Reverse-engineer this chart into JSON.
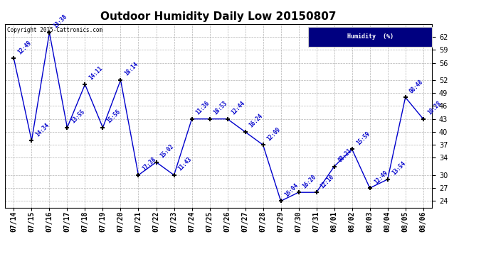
{
  "title": "Outdoor Humidity Daily Low 20150807",
  "background_color": "#ffffff",
  "plot_bg_color": "#ffffff",
  "line_color": "#0000cc",
  "label_color": "#0000cc",
  "grid_color": "#aaaaaa",
  "copyright_text": "Copyright 2015-Cattronics.com",
  "dates": [
    "07/14",
    "07/15",
    "07/16",
    "07/17",
    "07/18",
    "07/19",
    "07/20",
    "07/21",
    "07/22",
    "07/23",
    "07/24",
    "07/25",
    "07/26",
    "07/27",
    "07/28",
    "07/29",
    "07/30",
    "07/31",
    "08/01",
    "08/02",
    "08/03",
    "08/04",
    "08/05",
    "08/06"
  ],
  "values": [
    57,
    38,
    63,
    41,
    51,
    41,
    52,
    30,
    33,
    30,
    43,
    43,
    43,
    40,
    37,
    24,
    26,
    26,
    32,
    36,
    27,
    29,
    48,
    43
  ],
  "time_labels": [
    "12:49",
    "14:34",
    "13:38",
    "13:55",
    "14:11",
    "15:56",
    "18:14",
    "17:38",
    "15:02",
    "11:43",
    "11:36",
    "18:53",
    "12:44",
    "16:24",
    "12:09",
    "16:04",
    "16:20",
    "12:10",
    "08:21",
    "15:59",
    "12:49",
    "13:54",
    "08:48",
    "10:28"
  ],
  "yticks": [
    24,
    27,
    30,
    34,
    37,
    40,
    43,
    46,
    49,
    52,
    56,
    59,
    62
  ],
  "ylim": [
    22.5,
    65
  ],
  "legend_label": "Humidity  (%)",
  "legend_bg": "#000080",
  "legend_text_color": "#ffffff",
  "title_fontsize": 11,
  "tick_fontsize": 7,
  "label_fontsize": 5.5
}
